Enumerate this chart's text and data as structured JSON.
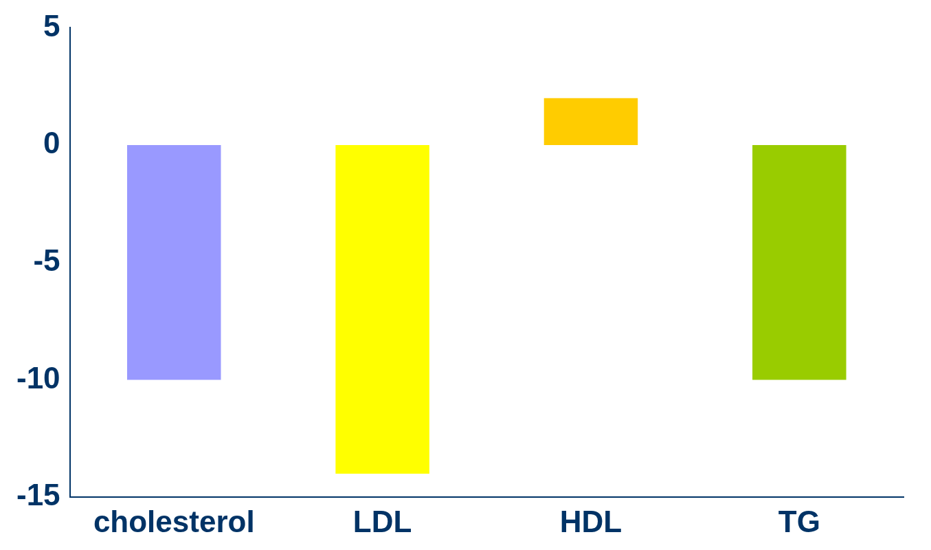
{
  "chart_data": {
    "type": "bar",
    "categories": [
      "cholesterol",
      "LDL",
      "HDL",
      "TG"
    ],
    "values": [
      -10,
      -14,
      2,
      -10
    ],
    "colors": [
      "#9999ff",
      "#ffff00",
      "#ffcc00",
      "#99cc00"
    ],
    "ylim": [
      -15,
      5
    ],
    "yticks": [
      -15,
      -10,
      -5,
      0,
      5
    ],
    "grid": false,
    "legend": false
  }
}
